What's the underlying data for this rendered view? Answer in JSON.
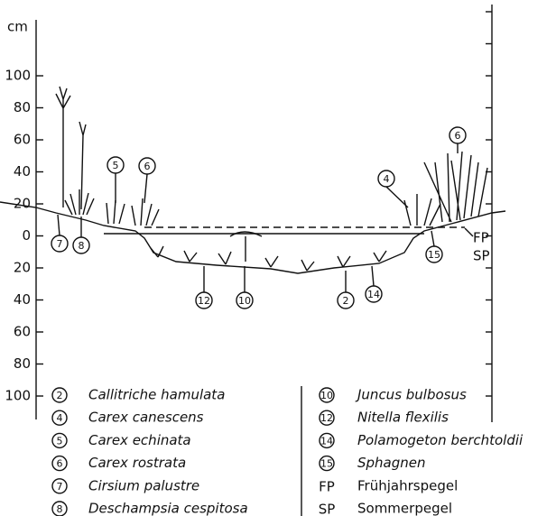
{
  "axis": {
    "unit": "cm",
    "ticks": [
      "100",
      "80",
      "60",
      "40",
      "20",
      "0",
      "20",
      "40",
      "60",
      "80",
      "100"
    ]
  },
  "profile_labels": [
    "7",
    "8",
    "5",
    "6",
    "12",
    "10",
    "2",
    "14",
    "4",
    "6",
    "15"
  ],
  "water_levels": [
    "FP",
    "SP"
  ],
  "legend": {
    "left": [
      {
        "key": "2",
        "name": "Callitriche hamulata"
      },
      {
        "key": "4",
        "name": "Carex canescens"
      },
      {
        "key": "5",
        "name": "Carex echinata"
      },
      {
        "key": "6",
        "name": "Carex rostrata"
      },
      {
        "key": "7",
        "name": "Cirsium palustre"
      },
      {
        "key": "8",
        "name": "Deschampsia cespitosa"
      }
    ],
    "right": [
      {
        "key": "10",
        "name": "Juncus bulbosus"
      },
      {
        "key": "12",
        "name": "Nitella flexilis"
      },
      {
        "key": "14",
        "name": "Polamogeton berchtoldii"
      },
      {
        "key": "15",
        "name": "Sphagnen"
      },
      {
        "key": "FP",
        "name": "Frühjahrspegel"
      },
      {
        "key": "SP",
        "name": "Sommerpegel"
      }
    ]
  }
}
